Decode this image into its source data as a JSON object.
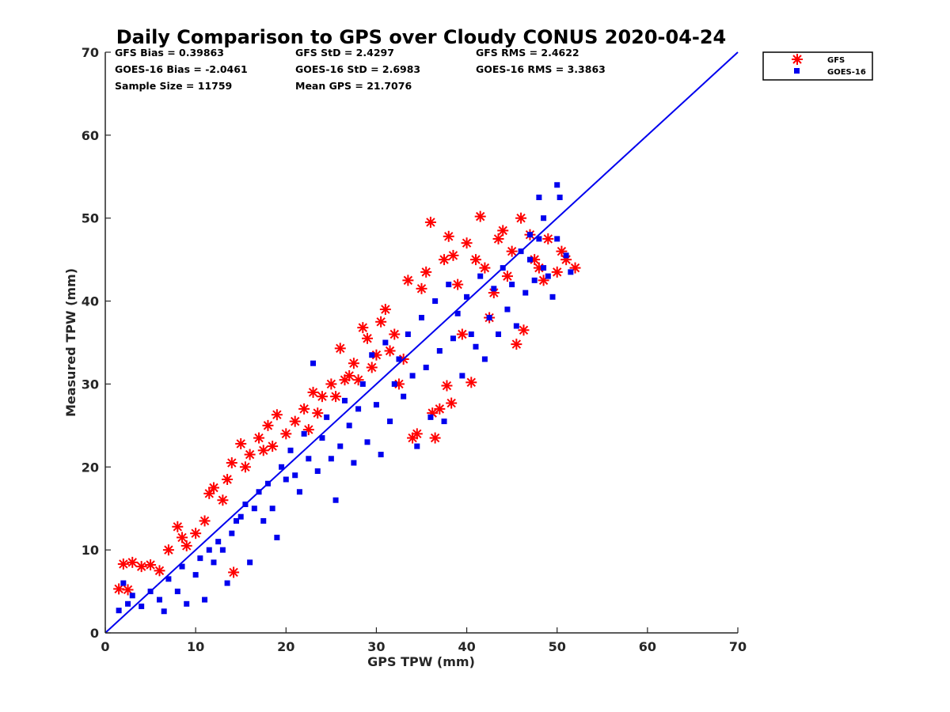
{
  "chart_data": {
    "type": "scatter",
    "title": "Daily Comparison to GPS over Cloudy CONUS 2020-04-24",
    "xlabel": "GPS TPW (mm)",
    "ylabel": "Measured TPW (mm)",
    "xlim": [
      0,
      70
    ],
    "ylim": [
      0,
      70
    ],
    "xticks": [
      "0",
      "10",
      "20",
      "30",
      "40",
      "50",
      "60",
      "70"
    ],
    "yticks": [
      "0",
      "10",
      "20",
      "30",
      "40",
      "50",
      "60",
      "70"
    ],
    "grid": false,
    "legend_position": "top-right outside",
    "stats": [
      [
        "GFS Bias = 0.39863",
        "GFS StD = 2.4297",
        "GFS RMS = 2.4622"
      ],
      [
        "GOES-16 Bias = -2.0461",
        "GOES-16 StD = 2.6983",
        "GOES-16 RMS = 3.3863"
      ],
      [
        "Sample Size = 11759",
        "Mean GPS = 21.7076",
        ""
      ]
    ],
    "reference_line": {
      "x": [
        0,
        70
      ],
      "y": [
        0,
        70
      ],
      "color": "#0000ee"
    },
    "series": [
      {
        "name": "GFS",
        "marker": "asterisk",
        "color": "#ff0000",
        "points": [
          [
            1.5,
            5.3
          ],
          [
            2,
            8.3
          ],
          [
            2.5,
            5.2
          ],
          [
            3,
            8.5
          ],
          [
            4,
            8
          ],
          [
            5,
            8.2
          ],
          [
            6,
            7.5
          ],
          [
            7,
            10
          ],
          [
            8,
            12.8
          ],
          [
            8.5,
            11.5
          ],
          [
            9,
            10.5
          ],
          [
            10,
            12
          ],
          [
            11,
            13.5
          ],
          [
            11.5,
            16.8
          ],
          [
            12,
            17.5
          ],
          [
            13,
            16
          ],
          [
            13.5,
            18.5
          ],
          [
            14.2,
            7.3
          ],
          [
            14,
            20.5
          ],
          [
            15,
            22.8
          ],
          [
            15.5,
            20
          ],
          [
            16,
            21.5
          ],
          [
            17,
            23.5
          ],
          [
            17.5,
            22
          ],
          [
            18,
            25
          ],
          [
            18.5,
            22.5
          ],
          [
            19,
            26.3
          ],
          [
            20,
            24
          ],
          [
            21,
            25.5
          ],
          [
            22,
            27
          ],
          [
            22.5,
            24.5
          ],
          [
            23,
            29
          ],
          [
            23.5,
            26.5
          ],
          [
            24,
            28.5
          ],
          [
            25,
            30
          ],
          [
            25.5,
            28.5
          ],
          [
            26,
            34.3
          ],
          [
            26.5,
            30.5
          ],
          [
            27,
            31
          ],
          [
            27.5,
            32.5
          ],
          [
            28,
            30.5
          ],
          [
            28.5,
            36.8
          ],
          [
            29,
            35.5
          ],
          [
            29.5,
            32
          ],
          [
            30,
            33.5
          ],
          [
            30.5,
            37.5
          ],
          [
            31,
            39
          ],
          [
            31.5,
            34
          ],
          [
            32,
            36
          ],
          [
            32.5,
            30
          ],
          [
            33,
            33
          ],
          [
            33.5,
            42.5
          ],
          [
            34,
            23.5
          ],
          [
            34.5,
            24
          ],
          [
            35,
            41.5
          ],
          [
            35.5,
            43.5
          ],
          [
            36,
            49.5
          ],
          [
            36.2,
            26.5
          ],
          [
            36.5,
            23.5
          ],
          [
            37,
            27
          ],
          [
            37.5,
            45
          ],
          [
            37.8,
            29.8
          ],
          [
            38,
            47.8
          ],
          [
            38.3,
            27.7
          ],
          [
            38.5,
            45.5
          ],
          [
            39,
            42
          ],
          [
            39.5,
            36
          ],
          [
            40,
            47
          ],
          [
            40.5,
            30.2
          ],
          [
            41,
            45
          ],
          [
            41.5,
            50.2
          ],
          [
            42,
            44
          ],
          [
            42.5,
            38
          ],
          [
            43,
            41
          ],
          [
            43.5,
            47.5
          ],
          [
            44,
            48.5
          ],
          [
            44.5,
            43
          ],
          [
            45,
            46
          ],
          [
            45.5,
            34.8
          ],
          [
            46,
            50
          ],
          [
            46.3,
            36.5
          ],
          [
            47,
            48
          ],
          [
            47.5,
            45
          ],
          [
            48,
            44
          ],
          [
            48.5,
            42.5
          ],
          [
            49,
            47.5
          ],
          [
            50,
            43.5
          ],
          [
            50.5,
            46
          ],
          [
            51,
            45
          ],
          [
            52,
            44
          ]
        ]
      },
      {
        "name": "GOES-16",
        "marker": "square",
        "color": "#0000ee",
        "points": [
          [
            1.5,
            2.7
          ],
          [
            2,
            6
          ],
          [
            2.5,
            3.5
          ],
          [
            3,
            4.5
          ],
          [
            4,
            3.2
          ],
          [
            5,
            5
          ],
          [
            6,
            4
          ],
          [
            6.5,
            2.6
          ],
          [
            7,
            6.5
          ],
          [
            8,
            5
          ],
          [
            8.5,
            8
          ],
          [
            9,
            3.5
          ],
          [
            10,
            7
          ],
          [
            10.5,
            9
          ],
          [
            11,
            4
          ],
          [
            11.5,
            10
          ],
          [
            12,
            8.5
          ],
          [
            12.5,
            11
          ],
          [
            13,
            10
          ],
          [
            13.5,
            6
          ],
          [
            14,
            12
          ],
          [
            14.5,
            13.5
          ],
          [
            15,
            14
          ],
          [
            15.5,
            15.5
          ],
          [
            16,
            8.5
          ],
          [
            16.5,
            15
          ],
          [
            17,
            17
          ],
          [
            17.5,
            13.5
          ],
          [
            18,
            18
          ],
          [
            18.5,
            15
          ],
          [
            19,
            11.5
          ],
          [
            19.5,
            20
          ],
          [
            20,
            18.5
          ],
          [
            20.5,
            22
          ],
          [
            21,
            19
          ],
          [
            21.5,
            17
          ],
          [
            22,
            24
          ],
          [
            22.5,
            21
          ],
          [
            23,
            32.5
          ],
          [
            23.5,
            19.5
          ],
          [
            24,
            23.5
          ],
          [
            24.5,
            26
          ],
          [
            25,
            21
          ],
          [
            25.5,
            16
          ],
          [
            26,
            22.5
          ],
          [
            26.5,
            28
          ],
          [
            27,
            25
          ],
          [
            27.5,
            20.5
          ],
          [
            28,
            27
          ],
          [
            28.5,
            30
          ],
          [
            29,
            23
          ],
          [
            29.5,
            33.5
          ],
          [
            30,
            27.5
          ],
          [
            30.5,
            21.5
          ],
          [
            31,
            35
          ],
          [
            31.5,
            25.5
          ],
          [
            32,
            30
          ],
          [
            32.5,
            33
          ],
          [
            33,
            28.5
          ],
          [
            33.5,
            36
          ],
          [
            34,
            31
          ],
          [
            34.5,
            22.5
          ],
          [
            35,
            38
          ],
          [
            35.5,
            32
          ],
          [
            36,
            26
          ],
          [
            36.5,
            40
          ],
          [
            37,
            34
          ],
          [
            37.5,
            25.5
          ],
          [
            38,
            42
          ],
          [
            38.5,
            35.5
          ],
          [
            39,
            38.5
          ],
          [
            39.5,
            31
          ],
          [
            40,
            40.5
          ],
          [
            40.5,
            36
          ],
          [
            41,
            34.5
          ],
          [
            41.5,
            43
          ],
          [
            42,
            33
          ],
          [
            42.5,
            38
          ],
          [
            43,
            41.5
          ],
          [
            43.5,
            36
          ],
          [
            44,
            44
          ],
          [
            44.5,
            39
          ],
          [
            45,
            42
          ],
          [
            45.5,
            37
          ],
          [
            46,
            46
          ],
          [
            46.5,
            41
          ],
          [
            47,
            45
          ],
          [
            47.5,
            42.5
          ],
          [
            48,
            47.5
          ],
          [
            48.5,
            44
          ],
          [
            48,
            52.5
          ],
          [
            48.5,
            50
          ],
          [
            49,
            43
          ],
          [
            50,
            54
          ],
          [
            50.3,
            52.5
          ],
          [
            50,
            47.5
          ],
          [
            51,
            45.5
          ],
          [
            51.5,
            43.5
          ],
          [
            49.5,
            40.5
          ],
          [
            47,
            48
          ]
        ]
      }
    ]
  }
}
